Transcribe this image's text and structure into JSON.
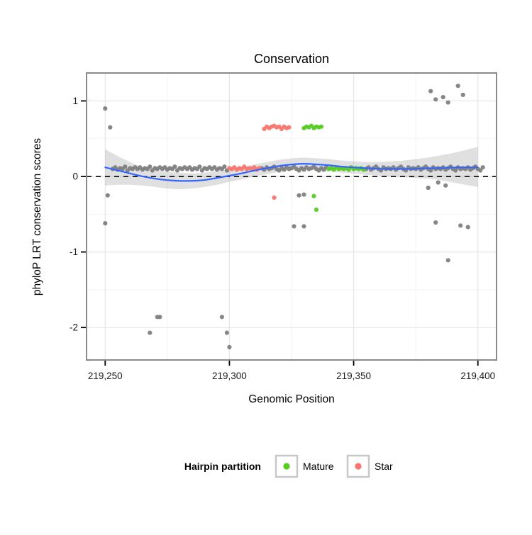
{
  "page": {
    "background": "#FFFFFF"
  },
  "chart_data": {
    "type": "scatter",
    "title": "Conservation",
    "xlabel": "Genomic Position",
    "ylabel": "phyloP LRT conservation scores",
    "xlim": [
      219242.5,
      219407.5
    ],
    "ylim": [
      -2.43,
      1.37
    ],
    "xticks": [
      219250,
      219300,
      219350,
      219400
    ],
    "xtick_labels": [
      "219,250",
      "219,300",
      "219,350",
      "219,400"
    ],
    "xticks_minor": [
      219275,
      219325,
      219375
    ],
    "yticks": [
      -2,
      -1,
      0,
      1
    ],
    "ytick_labels": [
      "-2",
      "-1",
      "0",
      "1"
    ],
    "yticks_minor": [
      -1.5,
      -0.5,
      0.5
    ],
    "grid": true,
    "panel_background": "#FFFFFF",
    "panel_border_color": "#8A8A8A",
    "grid_major_color": "#E5E5E5",
    "grid_minor_color": "#F2F2F2",
    "hline": {
      "y": 0,
      "style": "dashed",
      "color": "#000000"
    },
    "point_radius": 3.1,
    "legend": {
      "title": "Hairpin partition",
      "position": "bottom",
      "key_border_color": "#C8C8C8",
      "entries": [
        {
          "label": "Mature",
          "color": "#55CC22"
        },
        {
          "label": "Star",
          "color": "#F8766D"
        }
      ]
    },
    "series": [
      {
        "name": "other",
        "color": "#7F7F7F",
        "in_legend": false,
        "runs": [
          {
            "from": 219253,
            "to": 219299,
            "y_cycle": [
              0.1,
              0.12,
              0.09,
              0.11,
              0.1,
              0.13,
              0.08,
              0.11,
              0.1,
              0.12
            ]
          },
          {
            "from": 219313,
            "to": 219339,
            "y_cycle": [
              0.11,
              0.09,
              0.12,
              0.1,
              0.11,
              0.13,
              0.1,
              0.08
            ]
          },
          {
            "from": 219355,
            "to": 219402,
            "y_cycle": [
              0.1,
              0.12,
              0.09,
              0.11,
              0.13,
              0.1,
              0.08,
              0.12,
              0.1,
              0.11
            ]
          }
        ],
        "points": [
          [
            219250,
            0.9
          ],
          [
            219252,
            0.65
          ],
          [
            219251,
            -0.25
          ],
          [
            219250,
            -0.62
          ],
          [
            219268,
            -2.07
          ],
          [
            219271,
            -1.86
          ],
          [
            219272,
            -1.86
          ],
          [
            219297,
            -1.86
          ],
          [
            219299,
            -2.07
          ],
          [
            219300,
            -2.26
          ],
          [
            219326,
            -0.66
          ],
          [
            219330,
            -0.66
          ],
          [
            219328,
            -0.25
          ],
          [
            219330,
            -0.24
          ],
          [
            219381,
            1.13
          ],
          [
            219383,
            1.02
          ],
          [
            219386,
            1.05
          ],
          [
            219388,
            0.98
          ],
          [
            219392,
            1.2
          ],
          [
            219394,
            1.08
          ],
          [
            219380,
            -0.15
          ],
          [
            219384,
            -0.08
          ],
          [
            219387,
            -0.12
          ],
          [
            219383,
            -0.61
          ],
          [
            219393,
            -0.65
          ],
          [
            219396,
            -0.67
          ],
          [
            219388,
            -1.11
          ]
        ]
      },
      {
        "name": "Star",
        "color": "#F8766D",
        "in_legend": true,
        "runs": [
          {
            "from": 219300,
            "to": 219312,
            "y_cycle": [
              0.11,
              0.1,
              0.12,
              0.09,
              0.11,
              0.1,
              0.13,
              0.1
            ]
          }
        ],
        "points": [
          [
            219314,
            0.63
          ],
          [
            219315,
            0.66
          ],
          [
            219316,
            0.64
          ],
          [
            219317,
            0.66
          ],
          [
            219318,
            0.67
          ],
          [
            219319,
            0.65
          ],
          [
            219320,
            0.66
          ],
          [
            219321,
            0.63
          ],
          [
            219322,
            0.66
          ],
          [
            219323,
            0.64
          ],
          [
            219324,
            0.65
          ],
          [
            219318,
            -0.28
          ]
        ]
      },
      {
        "name": "Mature",
        "color": "#55CC22",
        "in_legend": true,
        "runs": [
          {
            "from": 219340,
            "to": 219354,
            "y_cycle": [
              0.1,
              0.11,
              0.09,
              0.12,
              0.1,
              0.11
            ]
          }
        ],
        "points": [
          [
            219330,
            0.64
          ],
          [
            219331,
            0.66
          ],
          [
            219332,
            0.65
          ],
          [
            219333,
            0.67
          ],
          [
            219334,
            0.64
          ],
          [
            219335,
            0.66
          ],
          [
            219336,
            0.65
          ],
          [
            219337,
            0.66
          ],
          [
            219334,
            -0.26
          ],
          [
            219335,
            -0.44
          ]
        ]
      }
    ],
    "smooth": {
      "color": "#3366FF",
      "line_width": 2.2,
      "band_color": "#999999",
      "band_opacity": 0.3,
      "points": [
        {
          "x": 219250,
          "y": 0.12,
          "lo": -0.12,
          "hi": 0.36
        },
        {
          "x": 219255,
          "y": 0.08,
          "lo": -0.11,
          "hi": 0.27
        },
        {
          "x": 219260,
          "y": 0.04,
          "lo": -0.11,
          "hi": 0.19
        },
        {
          "x": 219265,
          "y": 0.0,
          "lo": -0.12,
          "hi": 0.12
        },
        {
          "x": 219270,
          "y": -0.03,
          "lo": -0.14,
          "hi": 0.08
        },
        {
          "x": 219275,
          "y": -0.05,
          "lo": -0.16,
          "hi": 0.06
        },
        {
          "x": 219280,
          "y": -0.06,
          "lo": -0.17,
          "hi": 0.05
        },
        {
          "x": 219285,
          "y": -0.06,
          "lo": -0.16,
          "hi": 0.04
        },
        {
          "x": 219290,
          "y": -0.05,
          "lo": -0.14,
          "hi": 0.05
        },
        {
          "x": 219295,
          "y": -0.02,
          "lo": -0.11,
          "hi": 0.07
        },
        {
          "x": 219300,
          "y": 0.01,
          "lo": -0.07,
          "hi": 0.09
        },
        {
          "x": 219305,
          "y": 0.04,
          "lo": -0.04,
          "hi": 0.12
        },
        {
          "x": 219310,
          "y": 0.08,
          "lo": 0.0,
          "hi": 0.16
        },
        {
          "x": 219315,
          "y": 0.11,
          "lo": 0.03,
          "hi": 0.19
        },
        {
          "x": 219320,
          "y": 0.14,
          "lo": 0.06,
          "hi": 0.22
        },
        {
          "x": 219325,
          "y": 0.16,
          "lo": 0.08,
          "hi": 0.24
        },
        {
          "x": 219330,
          "y": 0.17,
          "lo": 0.09,
          "hi": 0.25
        },
        {
          "x": 219335,
          "y": 0.16,
          "lo": 0.08,
          "hi": 0.24
        },
        {
          "x": 219340,
          "y": 0.15,
          "lo": 0.07,
          "hi": 0.23
        },
        {
          "x": 219345,
          "y": 0.13,
          "lo": 0.05,
          "hi": 0.21
        },
        {
          "x": 219350,
          "y": 0.12,
          "lo": 0.04,
          "hi": 0.2
        },
        {
          "x": 219355,
          "y": 0.11,
          "lo": 0.02,
          "hi": 0.19
        },
        {
          "x": 219360,
          "y": 0.1,
          "lo": 0.01,
          "hi": 0.19
        },
        {
          "x": 219365,
          "y": 0.1,
          "lo": 0.0,
          "hi": 0.2
        },
        {
          "x": 219370,
          "y": 0.1,
          "lo": -0.01,
          "hi": 0.21
        },
        {
          "x": 219375,
          "y": 0.1,
          "lo": -0.02,
          "hi": 0.23
        },
        {
          "x": 219380,
          "y": 0.11,
          "lo": -0.03,
          "hi": 0.25
        },
        {
          "x": 219385,
          "y": 0.11,
          "lo": -0.05,
          "hi": 0.28
        },
        {
          "x": 219390,
          "y": 0.12,
          "lo": -0.08,
          "hi": 0.31
        },
        {
          "x": 219395,
          "y": 0.12,
          "lo": -0.11,
          "hi": 0.35
        },
        {
          "x": 219400,
          "y": 0.12,
          "lo": -0.14,
          "hi": 0.39
        }
      ]
    }
  }
}
